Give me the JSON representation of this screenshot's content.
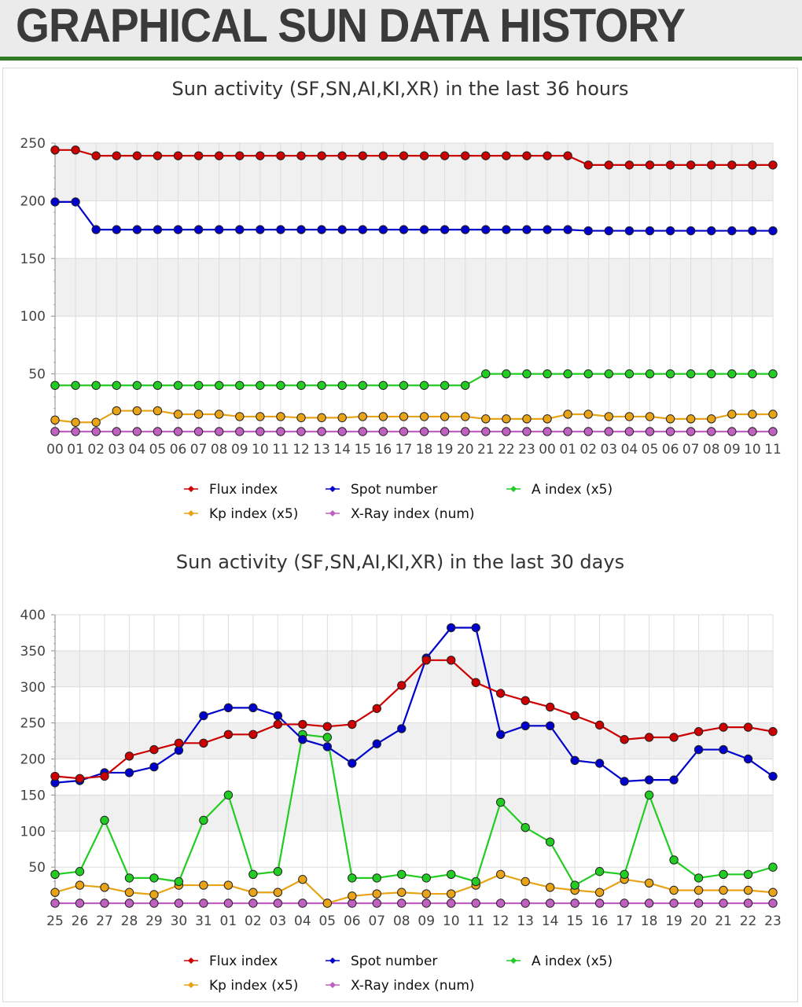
{
  "header": {
    "title": "GRAPHICAL SUN DATA HISTORY"
  },
  "chart_data": [
    {
      "type": "line",
      "title": "Sun activity (SF,SN,AI,KI,XR) in the last 36 hours",
      "xlabel": "",
      "ylabel": "",
      "ylim": [
        0,
        250
      ],
      "yticks": [
        50,
        100,
        150,
        200,
        250
      ],
      "grid": true,
      "legend_position": "bottom",
      "categories": [
        "00",
        "01",
        "02",
        "03",
        "04",
        "05",
        "06",
        "07",
        "08",
        "09",
        "10",
        "11",
        "12",
        "13",
        "14",
        "15",
        "16",
        "17",
        "18",
        "19",
        "20",
        "21",
        "22",
        "23",
        "00",
        "01",
        "02",
        "03",
        "04",
        "05",
        "06",
        "07",
        "08",
        "09",
        "10",
        "11"
      ],
      "series": [
        {
          "name": "Flux index",
          "color": "#cc0000",
          "values": [
            244,
            244,
            239,
            239,
            239,
            239,
            239,
            239,
            239,
            239,
            239,
            239,
            239,
            239,
            239,
            239,
            239,
            239,
            239,
            239,
            239,
            239,
            239,
            239,
            239,
            239,
            231,
            231,
            231,
            231,
            231,
            231,
            231,
            231,
            231,
            231
          ]
        },
        {
          "name": "Spot number",
          "color": "#0000cc",
          "values": [
            199,
            199,
            175,
            175,
            175,
            175,
            175,
            175,
            175,
            175,
            175,
            175,
            175,
            175,
            175,
            175,
            175,
            175,
            175,
            175,
            175,
            175,
            175,
            175,
            175,
            175,
            174,
            174,
            174,
            174,
            174,
            174,
            174,
            174,
            174,
            174
          ]
        },
        {
          "name": "A index (x5)",
          "color": "#22cc22",
          "values": [
            40,
            40,
            40,
            40,
            40,
            40,
            40,
            40,
            40,
            40,
            40,
            40,
            40,
            40,
            40,
            40,
            40,
            40,
            40,
            40,
            40,
            50,
            50,
            50,
            50,
            50,
            50,
            50,
            50,
            50,
            50,
            50,
            50,
            50,
            50,
            50
          ]
        },
        {
          "name": "Kp index (x5)",
          "color": "#e8a317",
          "values": [
            10,
            8,
            8,
            18,
            18,
            18,
            15,
            15,
            15,
            13,
            13,
            13,
            12,
            12,
            12,
            13,
            13,
            13,
            13,
            13,
            13,
            11,
            11,
            11,
            11,
            15,
            15,
            13,
            13,
            13,
            11,
            11,
            11,
            15,
            15,
            15
          ]
        },
        {
          "name": "X-Ray index (num)",
          "color": "#c060c0",
          "values": [
            0,
            0,
            0,
            0,
            0,
            0,
            0,
            0,
            0,
            0,
            0,
            0,
            0,
            0,
            0,
            0,
            0,
            0,
            0,
            0,
            0,
            0,
            0,
            0,
            0,
            0,
            0,
            0,
            0,
            0,
            0,
            0,
            0,
            0,
            0,
            0
          ]
        }
      ]
    },
    {
      "type": "line",
      "title": "Sun activity (SF,SN,AI,KI,XR) in the last 30 days",
      "xlabel": "",
      "ylabel": "",
      "ylim": [
        0,
        400
      ],
      "yticks": [
        50,
        100,
        150,
        200,
        250,
        300,
        350,
        400
      ],
      "grid": true,
      "legend_position": "bottom",
      "categories": [
        "25",
        "26",
        "27",
        "28",
        "29",
        "30",
        "31",
        "01",
        "02",
        "03",
        "04",
        "05",
        "06",
        "07",
        "08",
        "09",
        "10",
        "11",
        "12",
        "13",
        "14",
        "15",
        "16",
        "17",
        "18",
        "19",
        "20",
        "21",
        "22",
        "23"
      ],
      "series": [
        {
          "name": "Flux index",
          "color": "#cc0000",
          "values": [
            176,
            173,
            176,
            204,
            213,
            222,
            222,
            234,
            234,
            248,
            248,
            245,
            248,
            270,
            302,
            337,
            337,
            306,
            291,
            281,
            272,
            260,
            247,
            227,
            230,
            230,
            238,
            244,
            244,
            238
          ]
        },
        {
          "name": "Spot number",
          "color": "#0000cc",
          "values": [
            167,
            170,
            181,
            181,
            189,
            212,
            260,
            271,
            271,
            260,
            227,
            217,
            194,
            221,
            242,
            340,
            382,
            382,
            234,
            246,
            246,
            198,
            194,
            169,
            171,
            171,
            213,
            213,
            200,
            176
          ]
        },
        {
          "name": "A index (x5)",
          "color": "#22cc22",
          "values": [
            40,
            44,
            115,
            35,
            35,
            30,
            115,
            150,
            40,
            44,
            234,
            230,
            35,
            35,
            40,
            35,
            40,
            30,
            140,
            105,
            85,
            25,
            44,
            40,
            150,
            60,
            35,
            40,
            40,
            50
          ]
        },
        {
          "name": "Kp index (x5)",
          "color": "#e8a317",
          "values": [
            15,
            25,
            22,
            15,
            12,
            25,
            25,
            25,
            15,
            15,
            33,
            0,
            10,
            13,
            15,
            13,
            13,
            25,
            40,
            30,
            22,
            18,
            15,
            33,
            28,
            18,
            18,
            18,
            18,
            15
          ]
        },
        {
          "name": "X-Ray index (num)",
          "color": "#c060c0",
          "values": [
            0,
            0,
            0,
            0,
            0,
            0,
            0,
            0,
            0,
            0,
            0,
            0,
            0,
            0,
            0,
            0,
            0,
            0,
            0,
            0,
            0,
            0,
            0,
            0,
            0,
            0,
            0,
            0,
            0,
            0
          ]
        }
      ]
    }
  ]
}
